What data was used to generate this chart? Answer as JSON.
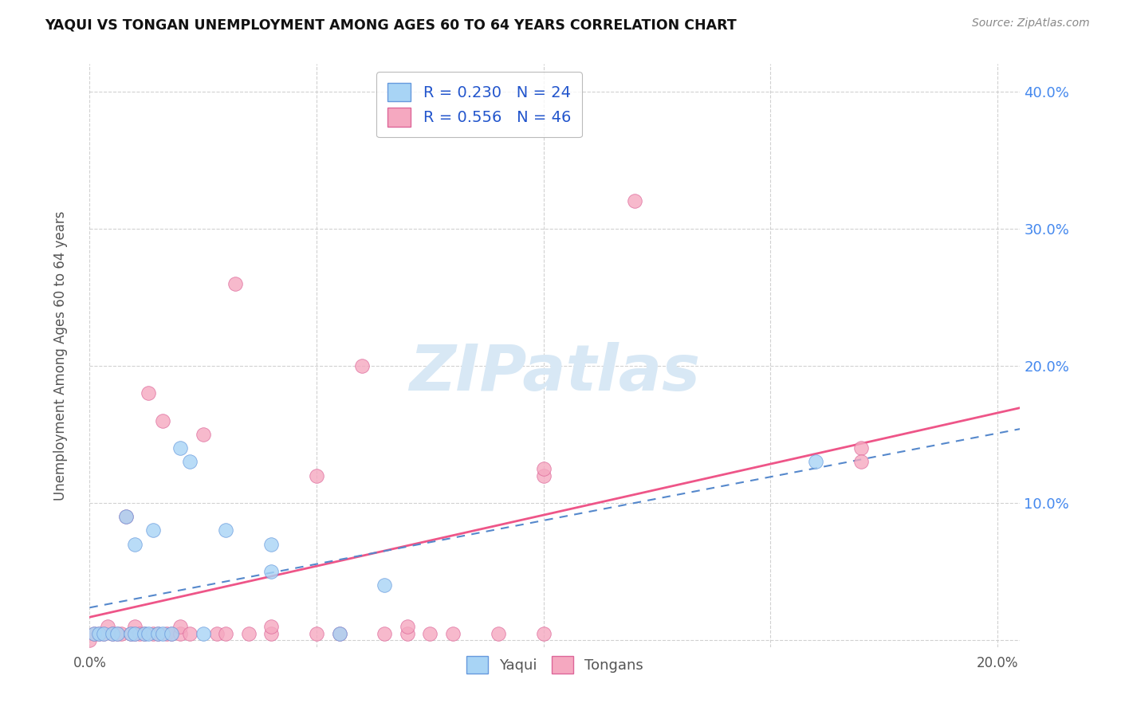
{
  "title": "YAQUI VS TONGAN UNEMPLOYMENT AMONG AGES 60 TO 64 YEARS CORRELATION CHART",
  "source": "Source: ZipAtlas.com",
  "ylabel": "Unemployment Among Ages 60 to 64 years",
  "xlim": [
    0.0,
    0.205
  ],
  "ylim": [
    -0.005,
    0.42
  ],
  "yaqui_R": 0.23,
  "yaqui_N": 24,
  "tongans_R": 0.556,
  "tongans_N": 46,
  "yaqui_color": "#a8d4f5",
  "tongans_color": "#f5a8c0",
  "yaqui_edge_color": "#6699dd",
  "tongans_edge_color": "#dd6699",
  "yaqui_line_color": "#5588cc",
  "tongans_line_color": "#ee5588",
  "watermark_color": "#d8e8f5",
  "watermark": "ZIPatlas",
  "legend_labels": [
    "Yaqui",
    "Tongans"
  ],
  "yaqui_x": [
    0.001,
    0.002,
    0.003,
    0.005,
    0.006,
    0.008,
    0.009,
    0.01,
    0.01,
    0.012,
    0.013,
    0.014,
    0.015,
    0.016,
    0.018,
    0.02,
    0.022,
    0.025,
    0.03,
    0.04,
    0.04,
    0.055,
    0.065,
    0.16
  ],
  "yaqui_y": [
    0.005,
    0.005,
    0.005,
    0.005,
    0.005,
    0.09,
    0.005,
    0.005,
    0.07,
    0.005,
    0.005,
    0.08,
    0.005,
    0.005,
    0.005,
    0.14,
    0.13,
    0.005,
    0.08,
    0.07,
    0.05,
    0.005,
    0.04,
    0.13
  ],
  "tongans_x": [
    0.0,
    0.001,
    0.002,
    0.003,
    0.004,
    0.005,
    0.006,
    0.007,
    0.008,
    0.009,
    0.01,
    0.01,
    0.011,
    0.012,
    0.013,
    0.014,
    0.015,
    0.016,
    0.017,
    0.018,
    0.02,
    0.02,
    0.022,
    0.025,
    0.028,
    0.03,
    0.032,
    0.035,
    0.04,
    0.04,
    0.05,
    0.05,
    0.055,
    0.06,
    0.065,
    0.07,
    0.07,
    0.075,
    0.08,
    0.09,
    0.1,
    0.1,
    0.1,
    0.12,
    0.17,
    0.17
  ],
  "tongans_y": [
    0.0,
    0.005,
    0.005,
    0.005,
    0.01,
    0.005,
    0.005,
    0.005,
    0.09,
    0.005,
    0.005,
    0.01,
    0.005,
    0.005,
    0.18,
    0.005,
    0.005,
    0.16,
    0.005,
    0.005,
    0.005,
    0.01,
    0.005,
    0.15,
    0.005,
    0.005,
    0.26,
    0.005,
    0.005,
    0.01,
    0.005,
    0.12,
    0.005,
    0.2,
    0.005,
    0.005,
    0.01,
    0.005,
    0.005,
    0.005,
    0.12,
    0.125,
    0.005,
    0.32,
    0.14,
    0.13
  ]
}
